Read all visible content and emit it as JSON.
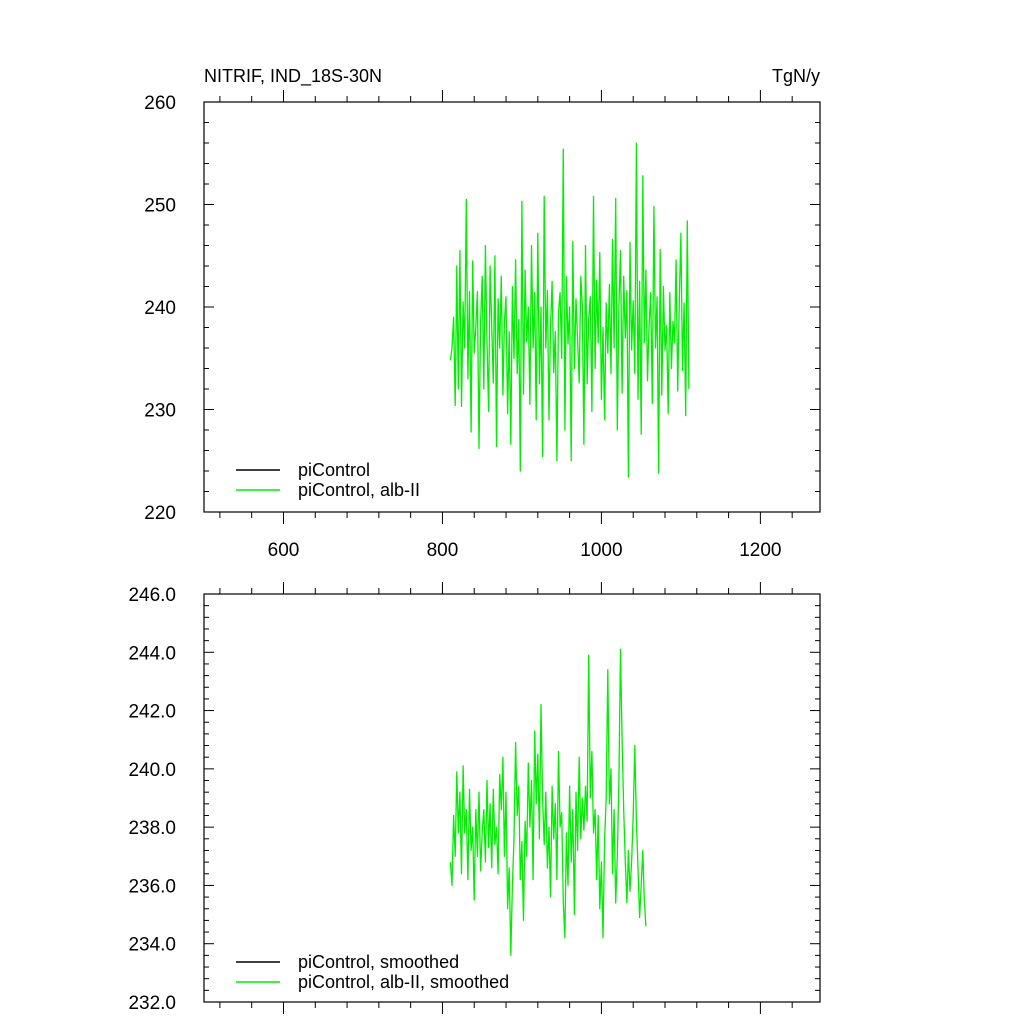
{
  "chart_data": [
    {
      "type": "line",
      "title_left": "NITRIF, IND_18S-30N",
      "title_right": "TgN/y",
      "xlim": [
        500,
        1275
      ],
      "ylim": [
        220,
        260
      ],
      "x_ticks": [
        600,
        800,
        1000,
        1200
      ],
      "x_tick_labels": [
        "600",
        "800",
        "1000",
        "1200"
      ],
      "y_ticks": [
        220,
        230,
        240,
        250,
        260
      ],
      "y_tick_labels": [
        "220",
        "230",
        "240",
        "250",
        "260"
      ],
      "legend_position": "bottom-left",
      "grid": false,
      "series": [
        {
          "name": "piControl",
          "color": "#000000",
          "x_start": 0,
          "x_step": 1,
          "values": []
        },
        {
          "name": "piControl, alb-II",
          "color": "#00ee00",
          "x_start": 810,
          "x_step": 2,
          "values": [
            234.8,
            236.0,
            239.0,
            230.4,
            244.0,
            232.0,
            245.5,
            230.3,
            240.5,
            236.0,
            250.5,
            233.0,
            241.5,
            227.8,
            244.5,
            235.5,
            238.0,
            241.5,
            226.2,
            238.5,
            243.0,
            232.0,
            246.0,
            236.5,
            229.8,
            244.0,
            238.2,
            232.6,
            245.0,
            226.4,
            240.8,
            236.0,
            243.0,
            231.4,
            238.5,
            241.0,
            229.6,
            237.6,
            226.6,
            242.0,
            235.0,
            244.6,
            233.5,
            238.8,
            224.0,
            250.3,
            231.5,
            243.6,
            236.6,
            240.0,
            230.5,
            246.0,
            236.0,
            241.4,
            229.0,
            247.2,
            232.5,
            240.0,
            225.4,
            250.8,
            236.0,
            241.6,
            229.0,
            238.0,
            242.5,
            233.6,
            237.6,
            225.0,
            239.5,
            241.4,
            235.0,
            255.4,
            228.0,
            243.0,
            236.4,
            240.0,
            225.0,
            246.4,
            234.0,
            240.8,
            236.8,
            232.6,
            243.0,
            240.2,
            226.6,
            246.0,
            232.5,
            238.8,
            241.0,
            229.8,
            250.8,
            234.0,
            242.6,
            236.5,
            245.3,
            231.0,
            238.0,
            229.0,
            240.4,
            235.5,
            242.2,
            233.5,
            246.6,
            236.0,
            250.6,
            228.0,
            240.0,
            245.5,
            231.6,
            243.0,
            237.0,
            241.6,
            223.4,
            246.3,
            235.8,
            240.6,
            233.5,
            256.0,
            231.0,
            242.5,
            227.6,
            252.8,
            236.5,
            243.6,
            232.8,
            238.2,
            241.4,
            230.6,
            249.8,
            236.0,
            241.0,
            223.8,
            245.6,
            231.4,
            242.0,
            235.8,
            238.2,
            229.6,
            241.4,
            234.0,
            238.6,
            236.5,
            244.6,
            231.8,
            240.6,
            247.2,
            233.8,
            240.4,
            229.4,
            248.4,
            232.0
          ]
        }
      ]
    },
    {
      "type": "line",
      "xlim": [
        500,
        1275
      ],
      "ylim": [
        232.0,
        246.0
      ],
      "x_ticks": [
        600,
        800,
        1000,
        1200
      ],
      "y_ticks": [
        232,
        234,
        236,
        238,
        240,
        242,
        244,
        246
      ],
      "y_tick_labels": [
        "232.0",
        "234.0",
        "236.0",
        "238.0",
        "240.0",
        "242.0",
        "244.0",
        "246.0"
      ],
      "legend_position": "bottom-left",
      "grid": false,
      "series": [
        {
          "name": "piControl, smoothed",
          "color": "#000000",
          "x_start": 0,
          "x_step": 1,
          "values": []
        },
        {
          "name": "piControl, alb-II, smoothed",
          "color": "#00ee00",
          "x_start": 810,
          "x_step": 2,
          "values": [
            236.8,
            236.0,
            238.4,
            237.0,
            239.9,
            237.8,
            239.2,
            236.4,
            240.1,
            237.8,
            238.6,
            236.2,
            239.3,
            237.2,
            238.0,
            235.5,
            238.6,
            237.0,
            239.2,
            236.5,
            237.8,
            238.6,
            236.8,
            239.6,
            237.3,
            238.8,
            236.6,
            239.3,
            237.4,
            238.0,
            236.4,
            239.8,
            238.6,
            240.4,
            237.0,
            239.2,
            235.2,
            236.6,
            233.6,
            236.0,
            237.6,
            240.9,
            238.4,
            239.4,
            236.2,
            237.5,
            234.8,
            238.2,
            237.0,
            240.2,
            238.0,
            239.6,
            236.2,
            241.3,
            238.8,
            240.5,
            237.6,
            242.2,
            239.0,
            237.4,
            239.2,
            236.6,
            238.0,
            235.6,
            239.4,
            237.6,
            238.8,
            236.2,
            240.6,
            238.0,
            238.5,
            235.4,
            234.2,
            237.8,
            236.0,
            239.4,
            236.8,
            238.6,
            235.0,
            239.2,
            237.2,
            240.4,
            237.6,
            239.0,
            237.9,
            239.4,
            238.2,
            243.9,
            239.0,
            240.6,
            237.8,
            238.6,
            236.2,
            238.4,
            235.2,
            236.8,
            234.2,
            237.6,
            239.0,
            243.4,
            238.8,
            240.0,
            236.4,
            238.6,
            235.4,
            237.0,
            239.6,
            244.1,
            241.0,
            238.6,
            236.8,
            235.4,
            237.2,
            235.8,
            236.8,
            238.4,
            240.8,
            238.2,
            236.6,
            234.9,
            236.0,
            237.2,
            235.5,
            234.6
          ]
        }
      ]
    }
  ]
}
